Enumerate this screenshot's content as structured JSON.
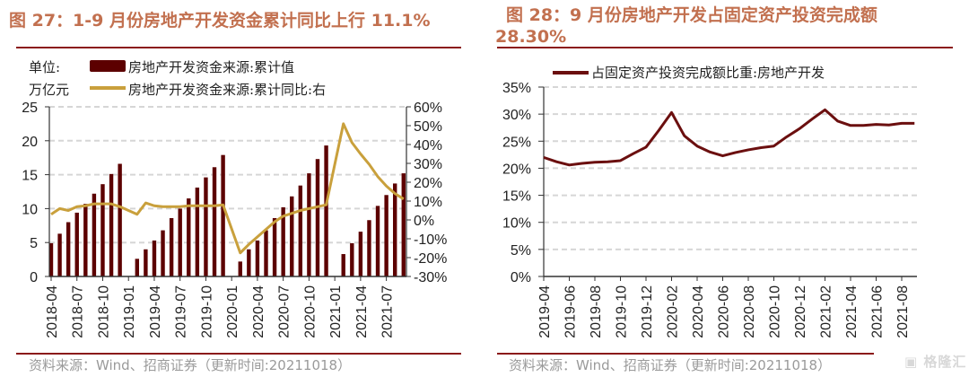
{
  "left": {
    "title": "图 27：1-9 月份房地产开发资金累计同比上行 11.1%",
    "unit_line1": "单位:",
    "unit_line2": "万亿元",
    "source": "资料来源：Wind、招商证券（更新时间:20211018）"
  },
  "right": {
    "title_line1": "图 28：9 月份房地产开发占固定资产投资完成额",
    "title_line2": "28.30%",
    "source": "资料来源：Wind、招商证券（更新时间:20211018）"
  },
  "watermark": "格隆汇",
  "colors": {
    "bar": "#5c0000",
    "yoy_line": "#c9a03c",
    "ratio_line": "#6b0f0f",
    "title": "#c2704f",
    "rule": "#8b1a1a",
    "negative_tick": "#ff0000"
  },
  "chart_data": [
    {
      "type": "bar+line",
      "title": "图 27：1-9 月份房地产开发资金累计同比上行 11.1%",
      "months": [
        "2018-04",
        "2018-05",
        "2018-06",
        "2018-07",
        "2018-08",
        "2018-09",
        "2018-10",
        "2018-11",
        "2018-12",
        "2019-01",
        "2019-02",
        "2019-03",
        "2019-04",
        "2019-05",
        "2019-06",
        "2019-07",
        "2019-08",
        "2019-09",
        "2019-10",
        "2019-11",
        "2019-12",
        "2020-01",
        "2020-02",
        "2020-03",
        "2020-04",
        "2020-05",
        "2020-06",
        "2020-07",
        "2020-08",
        "2020-09",
        "2020-10",
        "2020-11",
        "2020-12",
        "2021-01",
        "2021-02",
        "2021-03",
        "2021-04",
        "2021-05",
        "2021-06",
        "2021-07",
        "2021-08",
        "2021-09"
      ],
      "x_tick_labels": [
        "2018-04",
        "2018-07",
        "2018-10",
        "2019-01",
        "2019-04",
        "2019-07",
        "2019-10",
        "2020-01",
        "2020-04",
        "2020-07",
        "2020-10",
        "2021-01",
        "2021-04",
        "2021-07"
      ],
      "series": [
        {
          "name": "房地产开发资金来源:累计值",
          "kind": "bar",
          "axis": "left",
          "values": [
            4.9,
            6.3,
            8.0,
            9.4,
            10.7,
            12.2,
            13.6,
            15.1,
            16.6,
            null,
            2.6,
            4.0,
            5.3,
            6.8,
            8.6,
            10.0,
            11.5,
            13.1,
            14.6,
            16.1,
            17.9,
            null,
            2.2,
            4.0,
            5.3,
            6.8,
            8.6,
            10.2,
            11.8,
            13.4,
            15.2,
            17.3,
            19.3,
            null,
            3.3,
            4.9,
            6.6,
            8.3,
            10.4,
            12.0,
            13.7,
            15.2
          ]
        },
        {
          "name": "房地产开发资金来源:累计同比:右",
          "kind": "line",
          "axis": "right",
          "values": [
            3,
            6,
            5,
            7,
            7.5,
            8.5,
            8.5,
            8.5,
            7,
            null,
            3,
            9,
            7.5,
            7,
            7,
            7,
            7.5,
            7.5,
            7.5,
            7.5,
            8,
            null,
            -17.5,
            -13,
            -9,
            -5,
            -1,
            2,
            3.5,
            5,
            6,
            7,
            8,
            null,
            51,
            41,
            35,
            29.5,
            23,
            18,
            14,
            11.1
          ]
        }
      ],
      "left_axis": {
        "ylim": [
          0,
          25
        ],
        "ticks": [
          "0",
          "5",
          "10",
          "15",
          "20",
          "25"
        ]
      },
      "right_axis": {
        "ylim": [
          -30,
          60
        ],
        "ticks": [
          "-30%",
          "-20%",
          "-10%",
          "0%",
          "10%",
          "20%",
          "30%",
          "40%",
          "50%",
          "60%"
        ]
      },
      "grid": true,
      "legend": "top-left"
    },
    {
      "type": "line",
      "title": "图 28：9 月份房地产开发占固定资产投资完成额 28.30%",
      "months": [
        "2019-04",
        "2019-05",
        "2019-06",
        "2019-07",
        "2019-08",
        "2019-09",
        "2019-10",
        "2019-11",
        "2019-12",
        "2020-01",
        "2020-02",
        "2020-03",
        "2020-04",
        "2020-05",
        "2020-06",
        "2020-07",
        "2020-08",
        "2020-09",
        "2020-10",
        "2020-11",
        "2020-12",
        "2021-01",
        "2021-02",
        "2021-03",
        "2021-04",
        "2021-05",
        "2021-06",
        "2021-07",
        "2021-08",
        "2021-09"
      ],
      "x_tick_labels": [
        "2019-04",
        "2019-06",
        "2019-08",
        "2019-10",
        "2019-12",
        "2020-02",
        "2020-04",
        "2020-06",
        "2020-08",
        "2020-10",
        "2020-12",
        "2021-02",
        "2021-04",
        "2021-06",
        "2021-08"
      ],
      "series": [
        {
          "name": "占固定资产投资完成额比重:房地产开发",
          "values": [
            22.0,
            21.2,
            20.6,
            20.9,
            21.1,
            21.2,
            21.4,
            22.7,
            23.9,
            27.0,
            30.3,
            26.0,
            24.1,
            23.0,
            22.3,
            22.9,
            23.4,
            23.8,
            24.1,
            25.8,
            27.3,
            29.1,
            30.8,
            28.7,
            27.9,
            27.9,
            28.1,
            28.0,
            28.3,
            28.3
          ]
        }
      ],
      "y_axis": {
        "ylim": [
          0,
          35
        ],
        "ticks": [
          "0%",
          "5%",
          "10%",
          "15%",
          "20%",
          "25%",
          "30%",
          "35%"
        ]
      },
      "grid": true,
      "legend": "top"
    }
  ]
}
